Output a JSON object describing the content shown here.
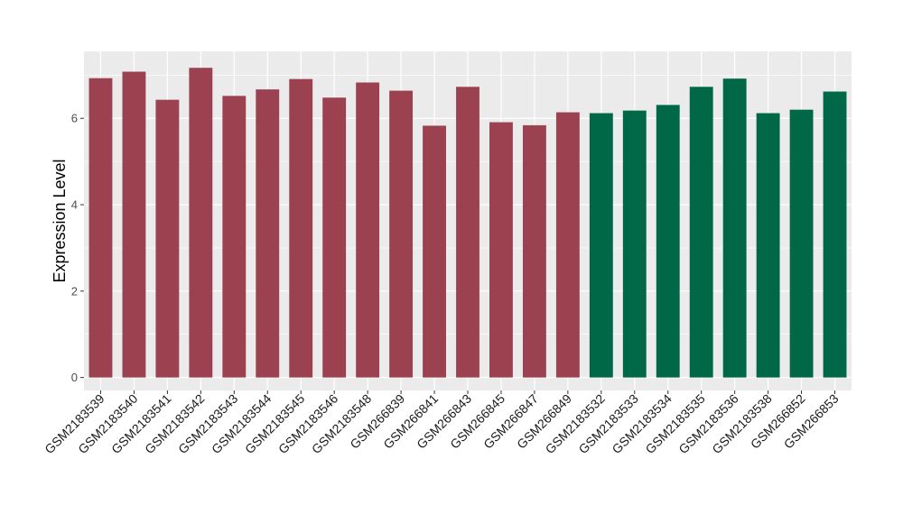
{
  "chart_data": {
    "type": "bar",
    "title": "",
    "xlabel": "",
    "ylabel": "Expression Level",
    "ylim": [
      -0.3,
      7.55
    ],
    "yticks": [
      0,
      2,
      4,
      6
    ],
    "grid": true,
    "legend": "none",
    "colors": {
      "group1": "#9b4150",
      "group2": "#006847",
      "panel": "#ebebeb",
      "grid": "#ffffff"
    },
    "categories": [
      "GSM2183539",
      "GSM2183540",
      "GSM2183541",
      "GSM2183542",
      "GSM2183543",
      "GSM2183544",
      "GSM2183545",
      "GSM2183546",
      "GSM2183548",
      "GSM266839",
      "GSM266841",
      "GSM266843",
      "GSM266845",
      "GSM266847",
      "GSM266849",
      "GSM2183532",
      "GSM2183533",
      "GSM2183534",
      "GSM2183535",
      "GSM2183536",
      "GSM2183538",
      "GSM266852",
      "GSM266853"
    ],
    "values": [
      6.93,
      7.08,
      6.43,
      7.17,
      6.52,
      6.67,
      6.91,
      6.48,
      6.83,
      6.64,
      5.83,
      6.73,
      5.91,
      5.84,
      6.14,
      6.12,
      6.18,
      6.31,
      6.73,
      6.92,
      6.12,
      6.2,
      6.62
    ],
    "groups": [
      "group1",
      "group1",
      "group1",
      "group1",
      "group1",
      "group1",
      "group1",
      "group1",
      "group1",
      "group1",
      "group1",
      "group1",
      "group1",
      "group1",
      "group1",
      "group2",
      "group2",
      "group2",
      "group2",
      "group2",
      "group2",
      "group2",
      "group2"
    ]
  }
}
